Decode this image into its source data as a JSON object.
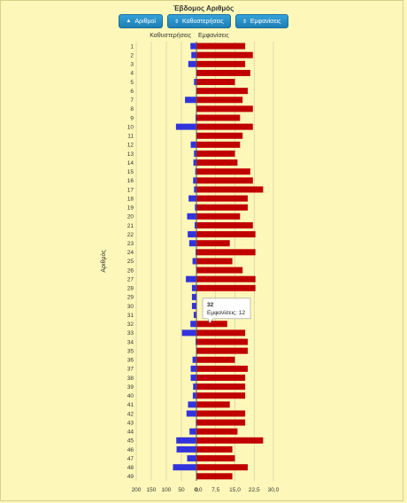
{
  "title": "Έβδομος Αριθμός",
  "buttons": [
    {
      "label": "Αριθμοί",
      "icon": "up-arrow-icon"
    },
    {
      "label": "Καθυστερήσεις",
      "icon": "sort-icon"
    },
    {
      "label": "Εμφανίσεις",
      "icon": "sort-icon"
    }
  ],
  "tooltip": {
    "number": "32",
    "text": "Εμφανίσεις: 12"
  },
  "colors": {
    "delays": "#3333dd",
    "appearances": "#c00000",
    "background": "#fdf8b9"
  },
  "chart_data": {
    "type": "bar",
    "orientation": "horizontal-diverging",
    "ylabel": "Αριθμός",
    "categories": [
      "1",
      "2",
      "3",
      "4",
      "5",
      "6",
      "7",
      "8",
      "9",
      "10",
      "11",
      "12",
      "13",
      "14",
      "15",
      "16",
      "17",
      "18",
      "19",
      "20",
      "21",
      "22",
      "23",
      "24",
      "25",
      "26",
      "27",
      "28",
      "29",
      "30",
      "31",
      "32",
      "33",
      "34",
      "35",
      "36",
      "37",
      "38",
      "39",
      "40",
      "41",
      "42",
      "43",
      "44",
      "45",
      "46",
      "47",
      "48",
      "49"
    ],
    "series": [
      {
        "name": "Καθυστερήσεις",
        "side": "left",
        "xlim": [
          0,
          200
        ],
        "ticks": [
          "200",
          "150",
          "100",
          "50",
          "0"
        ],
        "values": [
          20,
          17,
          27,
          0,
          8,
          0,
          38,
          0,
          3,
          68,
          0,
          19,
          8,
          10,
          4,
          11,
          8,
          26,
          5,
          31,
          6,
          29,
          24,
          3,
          13,
          0,
          35,
          15,
          15,
          15,
          9,
          20,
          48,
          3,
          0,
          13,
          19,
          19,
          11,
          12,
          28,
          33,
          2,
          23,
          67,
          66,
          31,
          78,
          0
        ]
      },
      {
        "name": "Εμφανίσεις",
        "side": "right",
        "xlim": [
          0,
          30
        ],
        "ticks": [
          "0,0",
          "7,5",
          "15,0",
          "22,5",
          "30,0"
        ],
        "values": [
          19,
          22,
          19,
          21,
          15,
          20,
          18,
          22,
          17,
          22,
          18,
          17,
          15,
          16,
          21,
          22,
          26,
          20,
          20,
          17,
          22,
          23,
          13,
          23,
          14,
          18,
          23,
          23,
          0,
          0,
          0,
          12,
          19,
          20,
          20,
          15,
          20,
          19,
          19,
          19,
          13,
          19,
          19,
          16,
          26,
          14,
          15,
          20,
          14
        ]
      }
    ],
    "grid": true
  }
}
